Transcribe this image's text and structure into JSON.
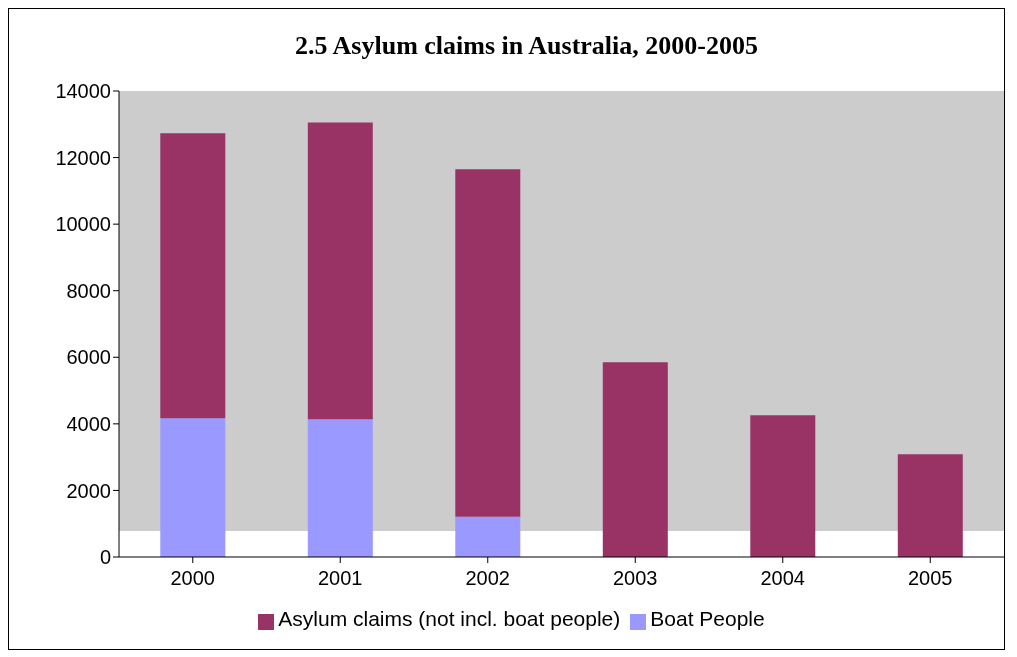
{
  "chart_data": {
    "type": "bar",
    "title": "2.5 Asylum claims in Australia, 2000-2005",
    "categories": [
      "2000",
      "2001",
      "2002",
      "2003",
      "2004",
      "2005"
    ],
    "stacked": true,
    "series": [
      {
        "name": "Boat People",
        "color": "#9999ff",
        "values": [
          4170,
          4140,
          1210,
          0,
          0,
          0
        ]
      },
      {
        "name": "Asylum claims (not incl. boat people)",
        "color": "#993366",
        "values": [
          8560,
          8910,
          10440,
          5850,
          4260,
          3090
        ]
      }
    ],
    "ylim": [
      0,
      14000
    ],
    "yticks": [
      0,
      2000,
      4000,
      6000,
      8000,
      10000,
      12000,
      14000
    ],
    "grid": false,
    "legend": "bottom"
  }
}
